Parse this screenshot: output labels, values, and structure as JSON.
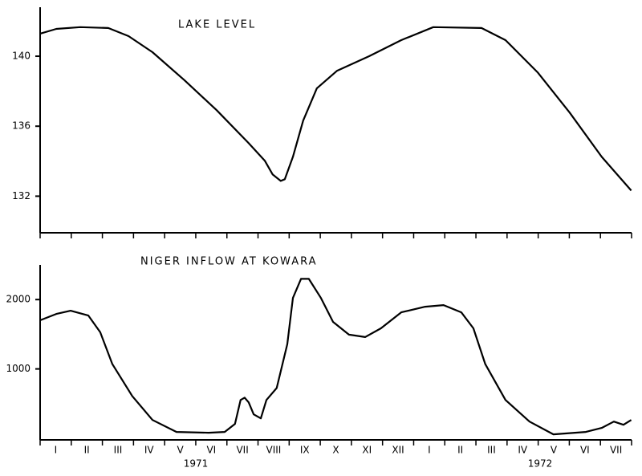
{
  "chart_data": [
    {
      "type": "line",
      "title": "LAKE LEVEL",
      "color": "#000000",
      "x": [
        0,
        0.52,
        1.29,
        2.19,
        2.84,
        3.61,
        4.64,
        5.67,
        6.7,
        7.22,
        7.47,
        7.73,
        7.86,
        8.12,
        8.45,
        8.89,
        9.54,
        10.57,
        11.6,
        12.63,
        14.18,
        14.95,
        15.98,
        17.01,
        18.04,
        18.99
      ],
      "values": [
        141.29,
        141.56,
        141.66,
        141.61,
        141.15,
        140.23,
        138.62,
        136.92,
        135.03,
        134.02,
        133.24,
        132.87,
        132.97,
        134.25,
        136.32,
        138.16,
        139.17,
        140.0,
        140.92,
        141.66,
        141.61,
        140.92,
        139.08,
        136.78,
        134.25,
        132.32
      ],
      "xlim": [
        0,
        19
      ],
      "xticks": [
        0,
        1,
        2,
        3,
        4,
        5,
        6,
        7,
        8,
        9,
        10,
        11,
        12,
        13,
        14,
        15,
        16,
        17,
        18,
        19
      ],
      "ylim": [
        130,
        142.8
      ],
      "yticks": [
        132,
        136,
        140
      ]
    },
    {
      "type": "line",
      "title": "NIGER INFLOW AT KOWARA",
      "color": "#000000",
      "x": [
        0,
        0.52,
        0.98,
        1.55,
        1.93,
        2.32,
        2.96,
        3.61,
        4.38,
        5.41,
        5.93,
        6.26,
        6.44,
        6.57,
        6.7,
        6.86,
        7.09,
        7.27,
        7.6,
        7.94,
        8.12,
        8.38,
        8.63,
        9.02,
        9.41,
        9.92,
        10.44,
        10.95,
        11.6,
        12.37,
        12.96,
        13.53,
        13.92,
        14.3,
        14.95,
        15.72,
        16.49,
        17.53,
        18.04,
        18.43,
        18.74,
        18.99
      ],
      "values": [
        1701,
        1793,
        1839,
        1770,
        1529,
        1069,
        609,
        264,
        92,
        80,
        92,
        207,
        552,
        586,
        517,
        345,
        287,
        552,
        724,
        1356,
        2023,
        2299,
        2299,
        2023,
        1678,
        1494,
        1460,
        1586,
        1816,
        1897,
        1920,
        1816,
        1586,
        1069,
        552,
        241,
        57,
        92,
        149,
        241,
        195,
        264
      ],
      "xlim": [
        0,
        19
      ],
      "xticks": [
        0,
        1,
        2,
        3,
        4,
        5,
        6,
        7,
        8,
        9,
        10,
        11,
        12,
        13,
        14,
        15,
        16,
        17,
        18,
        19
      ],
      "ylim": [
        0,
        2500
      ],
      "yticks": [
        1000,
        2000
      ],
      "categories": [
        "I",
        "II",
        "III",
        "IV",
        "V",
        "VI",
        "VII",
        "VIII",
        "IX",
        "X",
        "XI",
        "XII",
        "I",
        "II",
        "III",
        "IV",
        "V",
        "VI",
        "VII"
      ],
      "year_labels": [
        "1971",
        "1972"
      ]
    }
  ]
}
